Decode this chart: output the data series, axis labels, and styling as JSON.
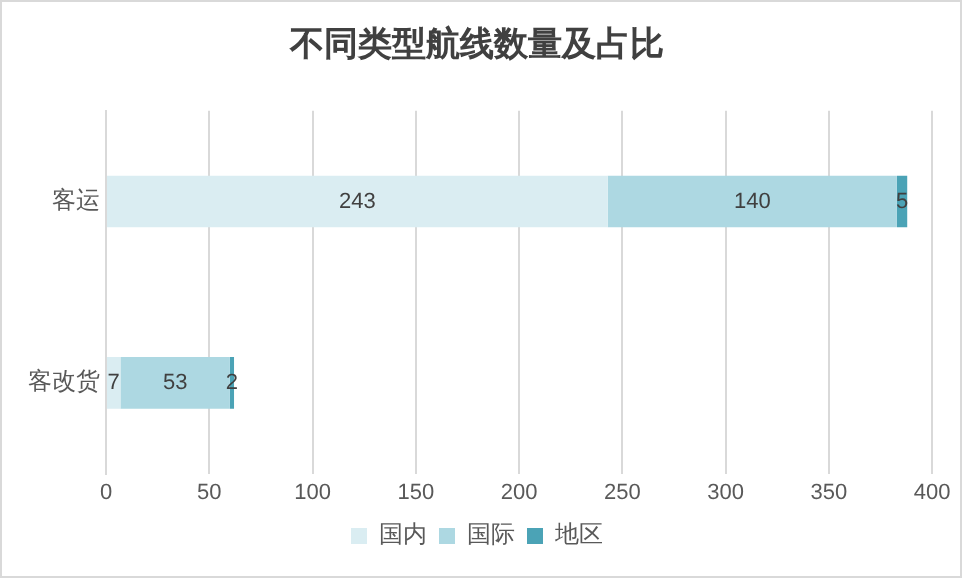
{
  "chart_data": {
    "type": "bar",
    "title": "不同类型航线数量及占比",
    "orientation": "horizontal",
    "stacked": true,
    "categories": [
      "客运",
      "客改货"
    ],
    "series": [
      {
        "name": "国内",
        "color": "#daedf2",
        "values": [
          243,
          7
        ]
      },
      {
        "name": "国际",
        "color": "#add8e2",
        "values": [
          140,
          53
        ]
      },
      {
        "name": "地区",
        "color": "#4ba3b6",
        "values": [
          5,
          2
        ]
      }
    ],
    "xlim": [
      0,
      400
    ],
    "xticks": [
      0,
      50,
      100,
      150,
      200,
      250,
      300,
      350,
      400
    ],
    "grid": "x",
    "legend": "bottom",
    "data_labels": true
  }
}
